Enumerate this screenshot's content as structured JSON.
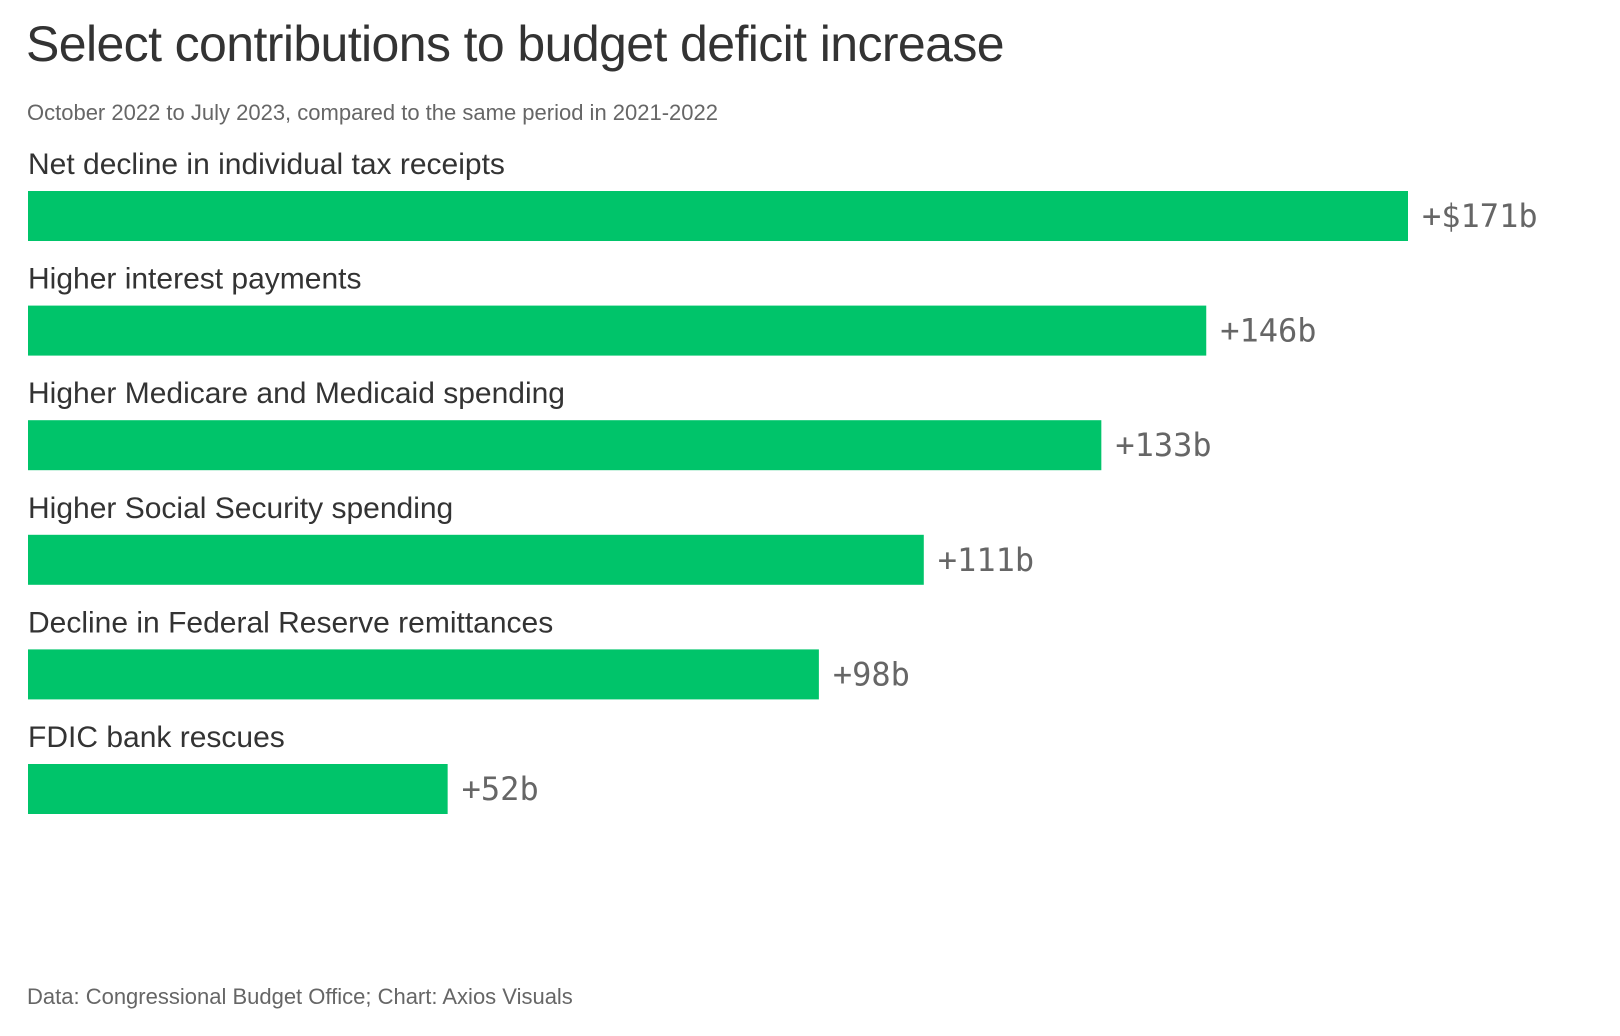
{
  "title": "Select contributions to budget deficit increase",
  "subtitle": "October 2022 to July 2023, compared to the same period in 2021-2022",
  "source": "Data: Congressional Budget Office; Chart: Axios Visuals",
  "colors": {
    "bar": "#00c46a",
    "text": "#333333",
    "muted": "#666666"
  },
  "chart_data": {
    "type": "bar",
    "orientation": "horizontal",
    "categories": [
      "Net decline in individual tax receipts",
      "Higher interest payments",
      "Higher Medicare and Medicaid spending",
      "Higher Social Security spending",
      "Decline in Federal Reserve remittances",
      "FDIC bank rescues"
    ],
    "values": [
      171,
      146,
      133,
      111,
      98,
      52
    ],
    "value_labels": [
      "+$171b",
      "+146b",
      "+133b",
      "+111b",
      "+98b",
      "+52b"
    ],
    "title": "Select contributions to budget deficit increase",
    "subtitle": "October 2022 to July 2023, compared to the same period in 2021-2022",
    "xlim": [
      0,
      171
    ],
    "grid": false,
    "legend": "none"
  }
}
